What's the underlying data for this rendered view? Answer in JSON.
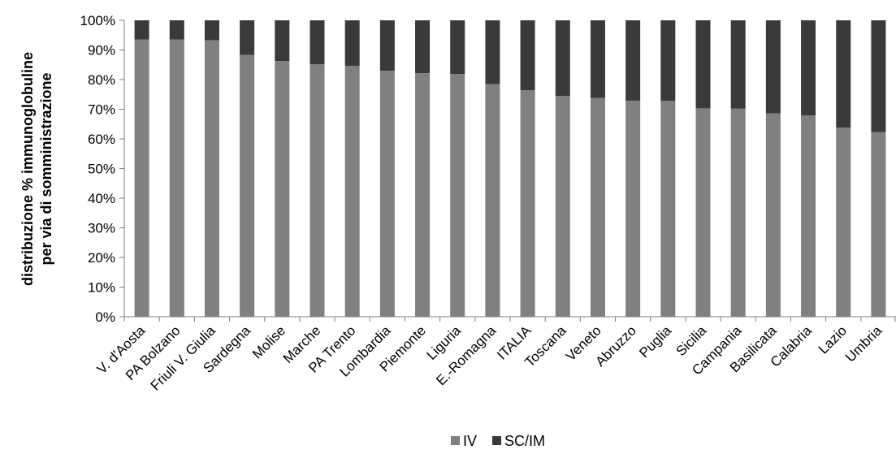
{
  "chart_data": {
    "type": "bar",
    "stacked": true,
    "percent": true,
    "ylabel_lines": [
      "distribuzione % immunoglobuline",
      "per via di somministrazione"
    ],
    "xlabel": "",
    "yticks": [
      "0%",
      "10%",
      "20%",
      "30%",
      "40%",
      "50%",
      "60%",
      "70%",
      "80%",
      "90%",
      "100%"
    ],
    "ylim": [
      0,
      100
    ],
    "grid": false,
    "legend_position": "bottom",
    "categories": [
      "V. d'Aosta",
      "PA Bolzano",
      "Friuli V. Giulia",
      "Sardegna",
      "Molise",
      "Marche",
      "PA Trento",
      "Lombardia",
      "Piemonte",
      "Liguria",
      "E.-Romagna",
      "ITALIA",
      "Toscana",
      "Veneto",
      "Abruzzo",
      "Puglia",
      "Sicilia",
      "Campania",
      "Basilicata",
      "Calabria",
      "Lazio",
      "Umbria"
    ],
    "series": [
      {
        "name": "IV",
        "color": "#808080",
        "values": [
          93.5,
          93.5,
          93.3,
          88.3,
          86.3,
          85.2,
          84.6,
          83.0,
          82.2,
          81.9,
          78.5,
          76.4,
          74.5,
          73.8,
          72.9,
          72.8,
          70.3,
          70.2,
          68.6,
          67.9,
          63.8,
          62.3
        ]
      },
      {
        "name": "SC/IM",
        "color": "#3a3a3a",
        "values": [
          6.5,
          6.5,
          6.7,
          11.7,
          13.7,
          14.8,
          15.4,
          17.0,
          17.8,
          18.1,
          21.5,
          23.6,
          25.5,
          26.2,
          27.1,
          27.2,
          29.7,
          29.8,
          31.4,
          32.1,
          36.2,
          37.7
        ]
      }
    ]
  }
}
